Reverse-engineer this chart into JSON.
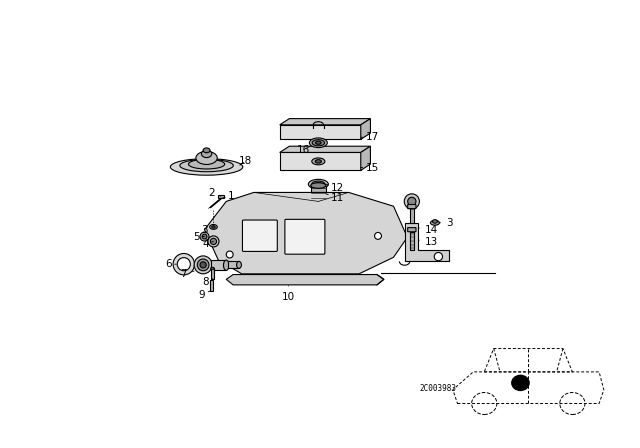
{
  "background_color": "#ffffff",
  "line_color": "#000000",
  "code": "2C003983",
  "figsize": [
    6.4,
    4.48
  ],
  "dpi": 100
}
